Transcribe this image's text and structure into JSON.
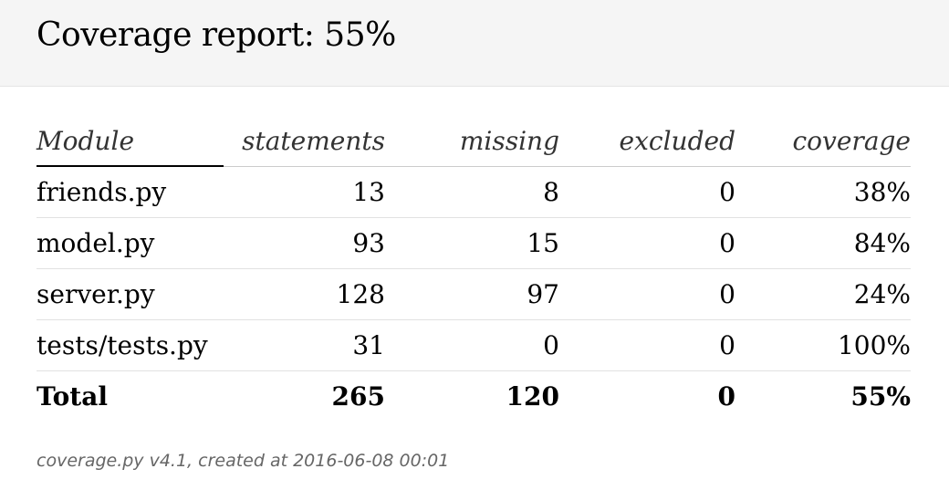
{
  "header": {
    "title": "Coverage report: 55%"
  },
  "table": {
    "columns": {
      "module": "Module",
      "statements": "statements",
      "missing": "missing",
      "excluded": "excluded",
      "coverage": "coverage"
    },
    "rows": [
      {
        "module": "friends.py",
        "statements": "13",
        "missing": "8",
        "excluded": "0",
        "coverage": "38%"
      },
      {
        "module": "model.py",
        "statements": "93",
        "missing": "15",
        "excluded": "0",
        "coverage": "84%"
      },
      {
        "module": "server.py",
        "statements": "128",
        "missing": "97",
        "excluded": "0",
        "coverage": "24%"
      },
      {
        "module": "tests/tests.py",
        "statements": "31",
        "missing": "0",
        "excluded": "0",
        "coverage": "100%"
      }
    ],
    "total": {
      "module": "Total",
      "statements": "265",
      "missing": "120",
      "excluded": "0",
      "coverage": "55%"
    }
  },
  "footer": {
    "text": "coverage.py v4.1, created at 2016-06-08 00:01"
  }
}
